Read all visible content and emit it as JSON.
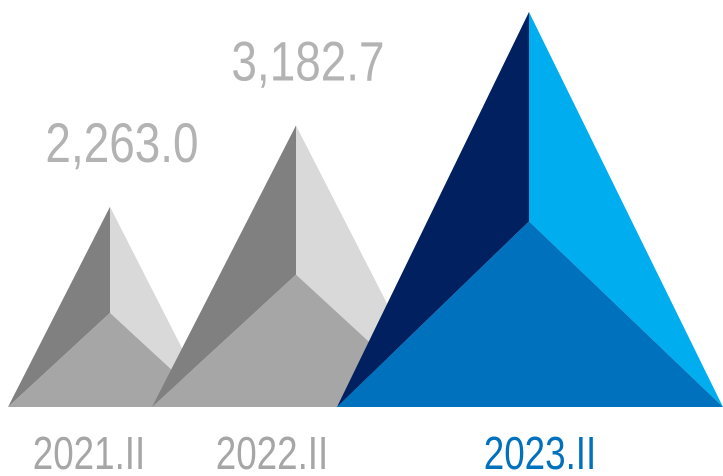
{
  "chart_data": {
    "type": "bar",
    "categories": [
      "2021.II",
      "2022.II",
      "2023.II"
    ],
    "values": [
      2263.0,
      3182.7,
      4464.8
    ],
    "data_labels": [
      "2,263.0",
      "3,182.7",
      ""
    ],
    "highlight_index": 2,
    "colors": {
      "past_front": "#a6a6a6",
      "past_left": "#808080",
      "past_right": "#d9d9d9",
      "current_front": "#0071bc",
      "current_left": "#002060",
      "current_right": "#00aeef",
      "past_label": "#a6a6a6",
      "current_label": "#0071bc",
      "value_label": "#b3b3b3"
    }
  }
}
